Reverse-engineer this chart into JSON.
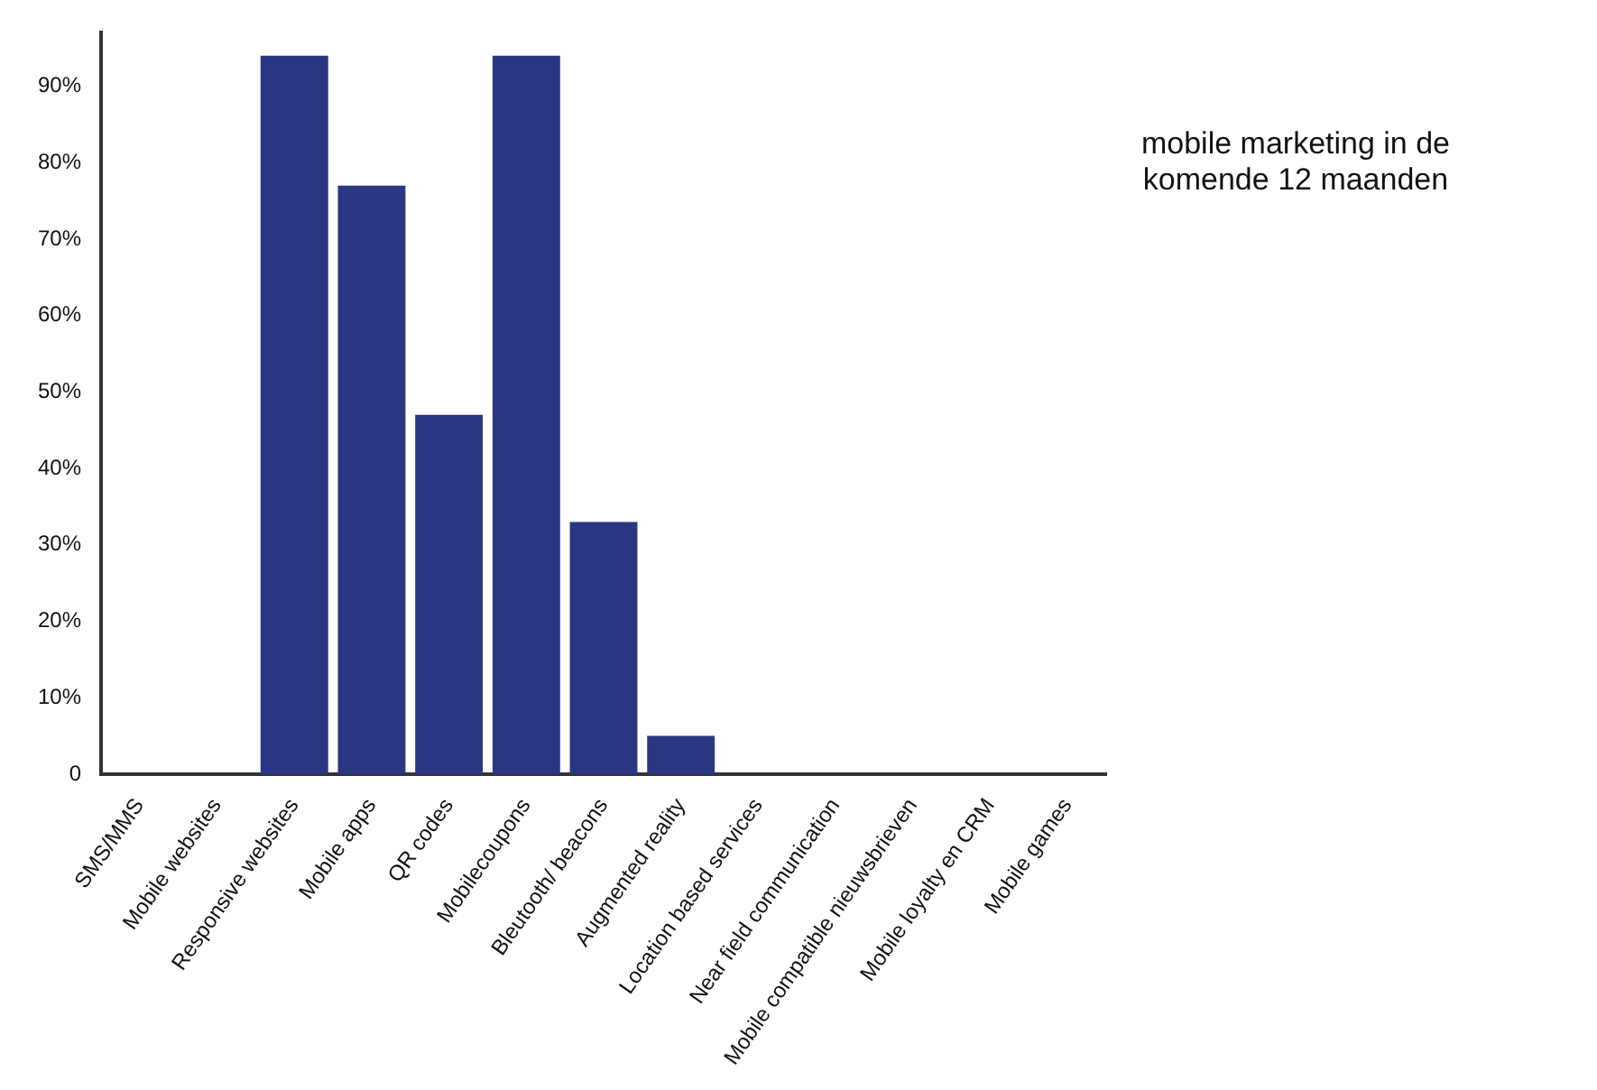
{
  "chart_data": {
    "type": "bar",
    "title": "mobile marketing in de komende 12 maanden",
    "categories": [
      "SMS/MMS",
      "Mobile websites",
      "Responsive websites",
      "Mobile apps",
      "QR codes",
      "Mobilecoupons",
      "Bleutooth/ beacons",
      "Augmented reality",
      "Location based services",
      "Near field communication",
      "Mobile compatible nieuwsbrieven",
      "Mobile loyalty en CRM",
      "Mobile games"
    ],
    "values": [
      0,
      0,
      94,
      77,
      47,
      94,
      33,
      5,
      0,
      0,
      0,
      0,
      0
    ],
    "color": "#293783",
    "ylim": [
      0,
      97
    ],
    "yticks": [
      0,
      {
        "value": 10,
        "label": "10%"
      },
      {
        "value": 20,
        "label": "20%"
      },
      {
        "value": 30,
        "label": "30%"
      },
      {
        "value": 40,
        "label": "40%"
      },
      {
        "value": 50,
        "label": "50%"
      },
      {
        "value": 60,
        "label": "60%"
      },
      {
        "value": 70,
        "label": "70%"
      },
      {
        "value": 80,
        "label": "80%"
      },
      {
        "value": 90,
        "label": "90%"
      }
    ]
  }
}
